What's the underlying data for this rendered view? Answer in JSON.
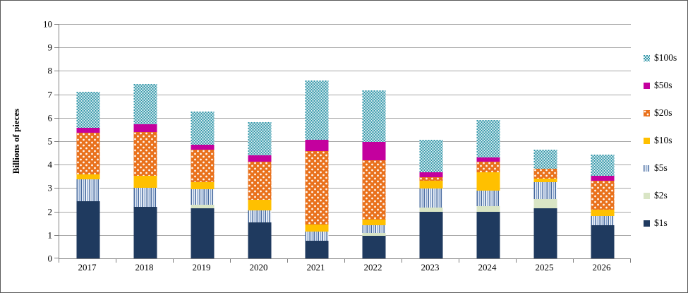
{
  "figure": {
    "background_color": "#ffffff",
    "border_color": "#595959",
    "gridline_color": "#a6a6a6",
    "axis_color": "#808080"
  },
  "chart_data": {
    "type": "bar",
    "stacked": true,
    "title": "",
    "xlabel": "",
    "ylabel": "Billions of pieces",
    "ylim": [
      0,
      10
    ],
    "yticks": [
      0,
      1,
      2,
      3,
      4,
      5,
      6,
      7,
      8,
      9,
      10
    ],
    "grid": true,
    "legend_position": "right",
    "categories": [
      "2017",
      "2018",
      "2019",
      "2020",
      "2021",
      "2022",
      "2023",
      "2024",
      "2025",
      "2026"
    ],
    "series": [
      {
        "name": "$1s",
        "key": "s1",
        "color": "#1f3a5f",
        "pattern": "solid",
        "values": [
          2.43,
          2.2,
          2.13,
          1.53,
          0.75,
          0.97,
          2.0,
          2.0,
          2.15,
          1.41
        ]
      },
      {
        "name": "$2s",
        "key": "s2",
        "color": "#d9e5c5",
        "pattern": "solid",
        "values": [
          0,
          0,
          0.17,
          0,
          0,
          0.1,
          0.16,
          0.24,
          0.38,
          0
        ]
      },
      {
        "name": "$5s",
        "key": "s5",
        "color": "#6d8ebf",
        "pattern": "vertical-stripes",
        "values": [
          0.95,
          0.81,
          0.66,
          0.51,
          0.4,
          0.34,
          0.83,
          0.65,
          0.73,
          0.4
        ]
      },
      {
        "name": "$10s",
        "key": "s10",
        "color": "#ffc000",
        "pattern": "solid",
        "values": [
          0.22,
          0.51,
          0.3,
          0.46,
          0.31,
          0.26,
          0.32,
          0.8,
          0.13,
          0.27
        ]
      },
      {
        "name": "$20s",
        "key": "s20",
        "color": "#e9711c",
        "pattern": "white-dots",
        "values": [
          1.76,
          1.86,
          1.38,
          1.63,
          3.12,
          2.51,
          0.15,
          0.43,
          0.45,
          1.23
        ]
      },
      {
        "name": "$50s",
        "key": "s50",
        "color": "#c4009e",
        "pattern": "solid",
        "values": [
          0.22,
          0.35,
          0.22,
          0.26,
          0.49,
          0.79,
          0.22,
          0.2,
          0,
          0.21
        ]
      },
      {
        "name": "$100s",
        "key": "s100",
        "color": "#2f96a8",
        "pattern": "white-checker",
        "values": [
          1.54,
          1.7,
          1.42,
          1.43,
          2.53,
          2.21,
          1.37,
          1.6,
          0.8,
          0.92
        ]
      }
    ],
    "totals": [
      7.12,
      7.43,
      6.28,
      5.82,
      7.6,
      7.18,
      5.05,
      5.92,
      4.64,
      4.44
    ]
  },
  "legend": {
    "items": [
      {
        "label": "$100s",
        "key": "s100"
      },
      {
        "label": "$50s",
        "key": "s50"
      },
      {
        "label": "$20s",
        "key": "s20"
      },
      {
        "label": "$10s",
        "key": "s10"
      },
      {
        "label": "$5s",
        "key": "s5"
      },
      {
        "label": "$2s",
        "key": "s2"
      },
      {
        "label": "$1s",
        "key": "s1"
      }
    ]
  }
}
